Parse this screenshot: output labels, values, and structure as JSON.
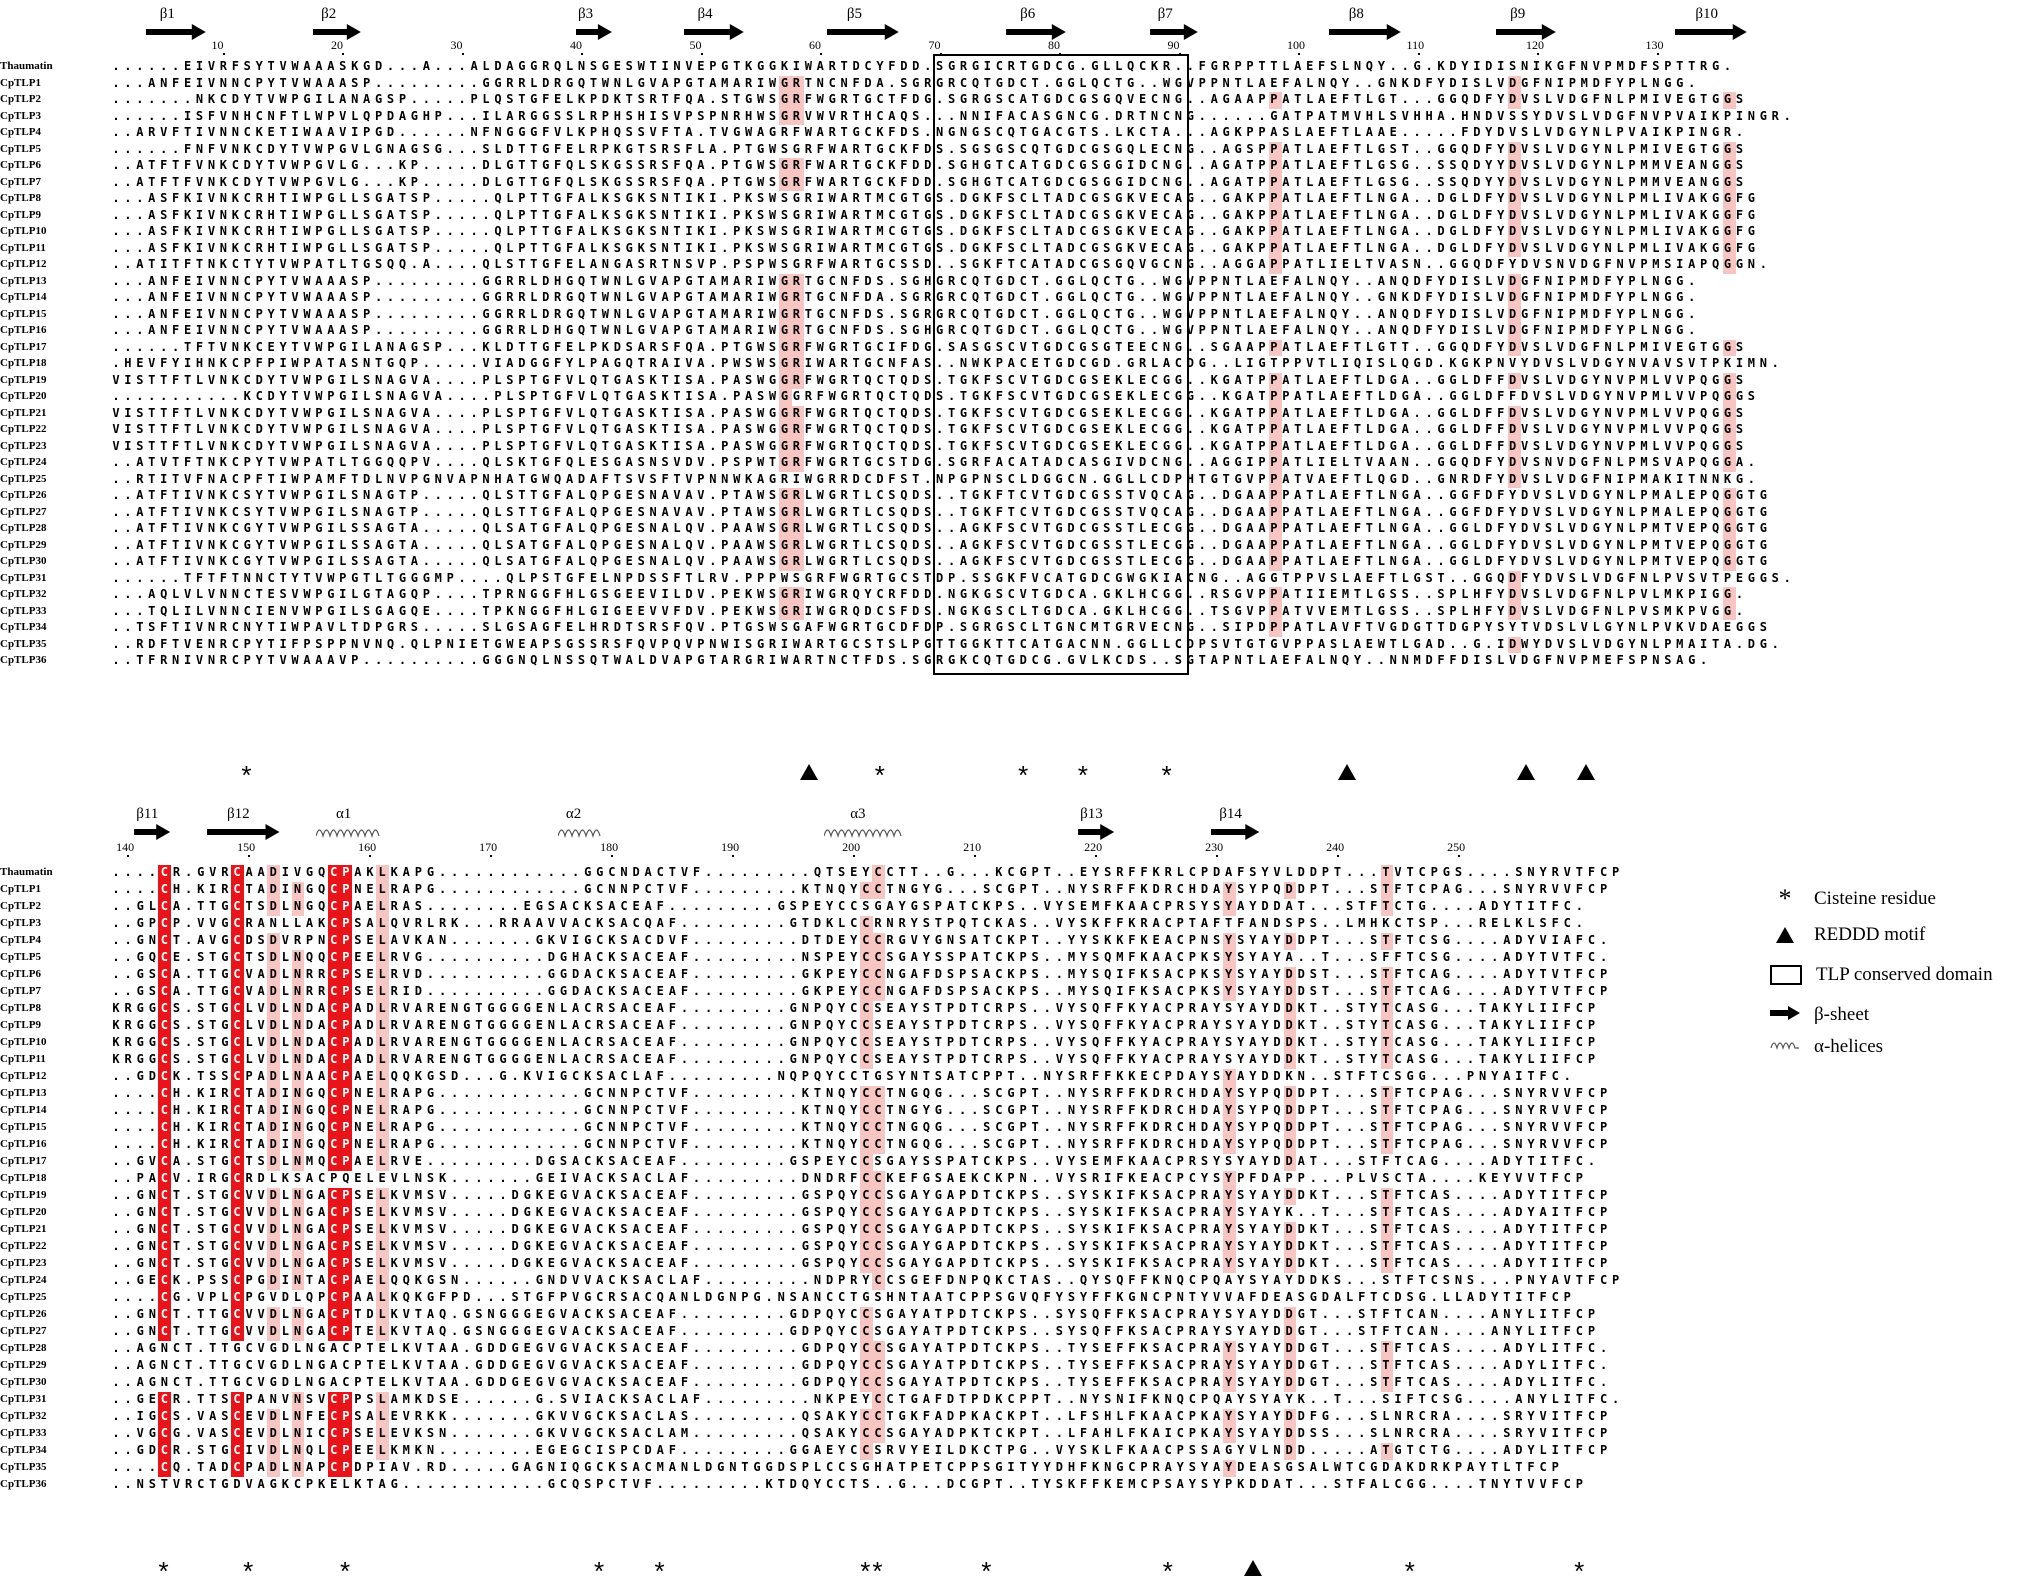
{
  "panel1": {
    "ruler": [
      "10",
      "20",
      "30",
      "40",
      "50",
      "60",
      "70",
      "80",
      "90",
      "100",
      "110",
      "120",
      "130"
    ],
    "ss": [
      {
        "type": "beta",
        "label": "β1"
      },
      {
        "type": "beta",
        "label": "β2"
      },
      {
        "type": "beta",
        "label": "β3"
      },
      {
        "type": "beta",
        "label": "β4"
      },
      {
        "type": "beta",
        "label": "β5"
      },
      {
        "type": "beta",
        "label": "β6"
      },
      {
        "type": "beta",
        "label": "β7"
      },
      {
        "type": "beta",
        "label": "β8"
      },
      {
        "type": "beta",
        "label": "β9"
      },
      {
        "type": "beta",
        "label": "β10"
      }
    ],
    "names": [
      "Thaumatin",
      "CpTLP1",
      "CpTLP2",
      "CpTLP3",
      "CpTLP4",
      "CpTLP5",
      "CpTLP6",
      "CpTLP7",
      "CpTLP8",
      "CpTLP9",
      "CpTLP10",
      "CpTLP11",
      "CpTLP12",
      "CpTLP13",
      "CpTLP14",
      "CpTLP15",
      "CpTLP16",
      "CpTLP17",
      "CpTLP18",
      "CpTLP19",
      "CpTLP20",
      "CpTLP21",
      "CpTLP22",
      "CpTLP23",
      "CpTLP24",
      "CpTLP25",
      "CpTLP26",
      "CpTLP27",
      "CpTLP28",
      "CpTLP29",
      "CpTLP30",
      "CpTLP31",
      "CpTLP32",
      "CpTLP33",
      "CpTLP34",
      "CpTLP35",
      "CpTLP36"
    ],
    "seqs": [
      "......EIVRFSYTVWAAASKGD...A...ALDAGGRQLNSGESWTINVEPGTKGGKIWARTDCYFDD.SGRGICRTGDCG.GLLQCKR..FGRPPTTLAEFSLNQY..G.KDYIDISNIKGFNVPMDFSPTTRG.",
      "...ANFEIVNNCPYTVWAAASP.........GGRRLDRGQTWNLGVAPGTAMARIWGRTNCNFDA.SGRGRCQTGDCT.GGLQCTG..WGVPPNTLAEFALNQY..GNKDFYDISLVDGFNIPMDFYPLNGG.",
      ".......NKCDYTVWPGILANAGSP.....PLQSTGFELKPDKTSRTFQA.STGWSGRFWGRTGCTFDG.SGRGSCATGDCGSGQVECNG..AGAAPPATLAEFTLGT...GGQDFYDVSLVDGFNLPMIVEGTGGS",
      "......ISFVNHCNFTLWPVLQPDAGHP...ILARGGSSLRPHSHISVPSPNRHWSGRVWVRTHCAQS...NNIFACASGNCG.DRTNCNG......GATPATMVHLSVHHA.HNDVSSYDVSLVDGFNVPVAIKPINGR.",
      "..ARVFTIVNNCKETIWAAVIPGD......NFNGGGFVLKPHQSSVFTA.TVGWAGRFWARTGCKFDS.NGNGSCQTGACGTS.LKCTA...AGKPPASLAEFTLAAE.....FDYDVSLVDGYNLPVAIKPINGR.",
      "......FNFVNKCDYTVWPGVLGNAGSG...SLDTTGFELRPKGTSRSFLA.PTGWSGRFWARTGCKFDS.SGSGSCQTGDCGSGQLECNG..AGSPPATLAEFTLGST..GGQDFYDVSLVDGYNLPMIVEGTGGS",
      "..ATFTFVNKCDYTVWPGVLG...KP.....DLGTTGFQLSKGSSRSFQA.PTGWSGRFWARTGCKFDD.SGHGTCATGDCGSGGIDCNG..AGATPPATLAEFTLGSG..SSQDYYDVSLVDGYNLPMMVEANGGS",
      "..ATFTFVNKCDYTVWPGVLG...KP.....DLGTTGFQLSKGSSRSFQA.PTGWSGRFWARTGCKFDD.SGHGTCATGDCGSGGIDCNG..AGATPPATLAEFTLGSG..SSQDYYDVSLVDGYNLPMMVEANGGS",
      "...ASFKIVNKCRHTIWPGLLSGATSP.....QLPTTGFALKSGKSNTIKI.PKSWSGRIWARTMCGTGS.DGKFSCLTADCGSGKVECAG..GAKPPATLAEFTLNGA..DGLDFYDVSLVDGYNLPMLIVAKGGFG",
      "...ASFKIVNKCRHTIWPGLLSGATSP.....QLPTTGFALKSGKSNTIKI.PKSWSGRIWARTMCGTGS.DGKFSCLTADCGSGKVECAG..GAKPPATLAEFTLNGA..DGLDFYDVSLVDGYNLPMLIVAKGGFG",
      "...ASFKIVNKCRHTIWPGLLSGATSP.....QLPTTGFALKSGKSNTIKI.PKSWSGRIWARTMCGTGS.DGKFSCLTADCGSGKVECAG..GAKPPATLAEFTLNGA..DGLDFYDVSLVDGYNLPMLIVAKGGFG",
      "...ASFKIVNKCRHTIWPGLLSGATSP.....QLPTTGFALKSGKSNTIKI.PKSWSGRIWARTMCGTGS.DGKFSCLTADCGSGKVECAG..GAKPPATLAEFTLNGA..DGLDFYDVSLVDGYNLPMLIVAKGGFG",
      "..ATITFTNKCTYTVWPATLTGSQQ.A....QLSTTGFELANGASRTNSVP.PSPWSGRFWARTGCSSD..SGKFTCATADCGSGQVGCNG..AGGAPPATLIELTVASN..GGQDFYDVSNVDGFNVPMSIAPQGGN.",
      "...ANFEIVNNCPYTVWAAASP.........GGRRLDHGQTWNLGVAPGTAMARIWGRTGCNFDS.SGHGRCQTGDCT.GGLQCTG..WGVPPNTLAEFALNQY..ANQDFYDISLVDGFNIPMDFYPLNGG.",
      "...ANFEIVNNCPYTVWAAASP.........GGRRLDRGQTWNLGVAPGTAMARIWGRTGCNFDA.SGRGRCQTGDCT.GGLQCTG..WGVPPNTLAEFALNQY..GNKDFYDISLVDGFNIPMDFYPLNGG.",
      "...ANFEIVNNCPYTVWAAASP.........GGRRLDRGQTWNLGVAPGTAMARIWGRTGCNFDS.SGRGRCQTGDCT.GGLQCTG..WGVPPNTLAEFALNQY..ANQDFYDISLVDGFNIPMDFYPLNGG.",
      "...ANFEIVNNCPYTVWAAASP.........GGRRLDHGQTWNLGVAPGTAMARIWGRTGCNFDS.SGHGRCQTGDCT.GGLQCTG..WGVPPNTLAEFALNQY..ANQDFYDISLVDGFNIPMDFYPLNGG.",
      "......TFTVNKCEYTVWPGILANAGSP...KLDTTGFELPKDSARSFQA.PTGWSGRFWGRTGCIFDG.SASGSCVTGDCGSGTEECNG..SGAAPPATLAEFTLGTT..GGQDFYDVSLVDGFNLPMIVEGTGGS",
      ".HEVFYIHNKCPFPIWPATASNTGQP.....VIADGGFYLPAGQTRAIVA.PWSWSGRIWARTGCNFAS..NWKPACETGDCGD.GRLACDG..LIGTPPVTLIQISLQGD.KGKPNVYDVSLVDGYNVAVSVTPKIMN.",
      "VISTTFTLVNKCDYTVWPGILSNAGVA....PLSPTGFVLQTGASKTISA.PASWGGRFWGRTQCTQDS.TGKFSCVTGDCGSEKLECGG..KGATPPATLAEFTLDGA..GGLDFFDVSLVDGYNVPMLVVPQGGS",
      "...........KCDYTVWPGILSNAGVA....PLSPTGFVLQTGASKTISA.PASWGGRFWGRTQCTQDS.TGKFSCVTGDCGSEKLECGG..KGATPPATLAEFTLDGA..GGLDFFDVSLVDGYNVPMLVVPQGGS",
      "VISTTFTLVNKCDYTVWPGILSNAGVA....PLSPTGFVLQTGASKTISA.PASWGGRFWGRTQCTQDS.TGKFSCVTGDCGSEKLECGG..KGATPPATLAEFTLDGA..GGLDFFDVSLVDGYNVPMLVVPQGGS",
      "VISTTFTLVNKCDYTVWPGILSNAGVA....PLSPTGFVLQTGASKTISA.PASWGGRFWGRTQCTQDS.TGKFSCVTGDCGSEKLECGG..KGATPPATLAEFTLDGA..GGLDFFDVSLVDGYNVPMLVVPQGGS",
      "VISTTFTLVNKCDYTVWPGILSNAGVA....PLSPTGFVLQTGASKTISA.PASWGGRFWGRTQCTQDS.TGKFSCVTGDCGSEKLECGG..KGATPPATLAEFTLDGA..GGLDFFDVSLVDGYNVPMLVVPQGGS",
      "..ATVTFTNKCPYTVWPATLTGGQQPV....QLSKTGFQLESGASNSVDV.PSPWTGRFWGRTGCSTDG.SGRFACATADCASGIVDCNG..AGGIPPATLIELTVAAN..GGQDFYDVSNVDGFNLPMSVAPQGGA.",
      "..RTITVFNACPFTIWPAMFTDLNVPGNVAPNHATGWQADAFTSVSFTVPNNWKAGRIWGRRDCDFST.NPGPNSCLDGGCN.GGLLCDPHTGTGVPPATVAEFTLQGD..GNRDFYDVSLVDGFNIPMAKITNNKG.",
      "..ATFTIVNKCSYTVWPGILSNAGTP.....QLSTTGFALQPGESNAVAV.PTAWSGRLWGRTLCSQDS..TGKFTCVTGDCGSSTVQCAG..DGAAPPATLAEFTLNGA..GGFDFYDVSLVDGYNLPMALEPQGGTG",
      "..ATFTIVNKCSYTVWPGILSNAGTP.....QLSTTGFALQPGESNAVAV.PTAWSGRLWGRTLCSQDS..TGKFTCVTGDCGSSTVQCAG..DGAAPPATLAEFTLNGA..GGFDFYDVSLVDGYNLPMALEPQGGTG",
      "..ATFTIVNKCGYTVWPGILSSAGTA.....QLSATGFALQPGESNALQV.PAAWSGRLWGRTLCSQDS..AGKFSCVTGDCGSSTLECGG..DGAAPPATLAEFTLNGA..GGLDFYDVSLVDGYNLPMTVEPQGGTG",
      "..ATFTIVNKCGYTVWPGILSSAGTA.....QLSATGFALQPGESNALQV.PAAWSGRLWGRTLCSQDS..AGKFSCVTGDCGSSTLECGG..DGAAPPATLAEFTLNGA..GGLDFYDVSLVDGYNLPMTVEPQGGTG",
      "..ATFTIVNKCGYTVWPGILSSAGTA.....QLSATGFALQPGESNALQV.PAAWSGRLWGRTLCSQDS..AGKFSCVTGDCGSSTLECGG..DGAAPPATLAEFTLNGA..GGLDFYDVSLVDGYNLPMTVEPQGGTG",
      "......TFTFTNNCTYTVWPGTLTGGGMP....QLPSTGFELNPDSSFTLRV.PPPWSGRFWGRTGCSTDP.SSGKFVCATGDCGWGKIACNG..AGGTPPVSLAEFTLGST..GGQDFYDVSLVDGFNLPVSVTPEGGS.",
      "...AQLVLVNNCTESVWPGILGTAGQP....TPRNGGFHLGSGEEVILDV.PEKWSGRIWGRQYCRFDD.NGKGSCVTGDCA.GKLHCGG..RSGVPPATIIEMTLGSS..SPLHFYDVSLVDGFNLPVLMKPIGG.",
      "...TQLILVNNCIENVWPGILSGAGQE....TPKNGGFHLGIGEEVVFDV.PEKWSGRIWGRQDCSFDS.NGKGSCLTGDCA.GKLHCGG..TSGVPPATVVEMTLGSS..SPLHFYDVSLVDGFNLPVSMKPVGG.",
      "..TSFTIVNRCNYTIWPAVLTDPGRS.....SLGSAGFELHRDTSRSFQV.PTGSWSGAFWGRTGCDFDP.SGRGSCLTGNCMTGRVECNG..SIPDPPATLAVFTVGDGTTDGPYSYTVDSLVLGYNLPVKVDAEGGS",
      "..RDFTVENRCPYTIFPSPPNVNQ.QLPNIETGWEAPSGSSRSFQVPQVPNWISGRIWARTGCSTSLPGTTGGKTTCATGACNN.GGLLCDPSVTGTGVPPASLAEWTLGAD..G.IDWYDVSLVDGYNLPMAITA.DG.",
      "..TFRNIVNRCPYTVWAAAVP..........GGGNQLNSSQTWALDVAPGTARGRIWARTNCTFDS.SGRGKCQTGDCG.GVLKCDS..SGTAPNTLAEFALNQY..NNMDFFDISLVDGFNVPMEFSPNSAG."
    ],
    "marks": [
      {
        "k": "star",
        "col": 11
      },
      {
        "k": "tri",
        "col": 58
      },
      {
        "k": "star",
        "col": 64
      },
      {
        "k": "star",
        "col": 76
      },
      {
        "k": "star",
        "col": 81
      },
      {
        "k": "star",
        "col": 88
      },
      {
        "k": "tri",
        "col": 103
      },
      {
        "k": "tri",
        "col": 118
      },
      {
        "k": "tri",
        "col": 123
      }
    ]
  },
  "panel2": {
    "ruler": [
      "140",
      "150",
      "160",
      "170",
      "180",
      "190",
      "200",
      "210",
      "220",
      "230",
      "240",
      "250"
    ],
    "ss": [
      {
        "type": "beta",
        "label": "β11"
      },
      {
        "type": "beta",
        "label": "β12"
      },
      {
        "type": "helix",
        "label": "α1"
      },
      {
        "type": "helix",
        "label": "α2"
      },
      {
        "type": "helix",
        "label": "α3"
      },
      {
        "type": "beta",
        "label": "β13"
      },
      {
        "type": "beta",
        "label": "β14"
      }
    ],
    "names": [
      "Thaumatin",
      "CpTLP1",
      "CpTLP2",
      "CpTLP3",
      "CpTLP4",
      "CpTLP5",
      "CpTLP6",
      "CpTLP7",
      "CpTLP8",
      "CpTLP9",
      "CpTLP10",
      "CpTLP11",
      "CpTLP12",
      "CpTLP13",
      "CpTLP14",
      "CpTLP15",
      "CpTLP16",
      "CpTLP17",
      "CpTLP18",
      "CpTLP19",
      "CpTLP20",
      "CpTLP21",
      "CpTLP22",
      "CpTLP23",
      "CpTLP24",
      "CpTLP25",
      "CpTLP26",
      "CpTLP27",
      "CpTLP28",
      "CpTLP29",
      "CpTLP30",
      "CpTLP31",
      "CpTLP32",
      "CpTLP33",
      "CpTLP34",
      "CpTLP35",
      "CpTLP36"
    ],
    "seqs": [
      "....CR.GVRCAADIVGQCPAKLKAPG............GGCNDACTVF.........QTSEYCCTT..G...KCGPT..EYSRFFKRLCPDAFSYVLDDPT...TVTCPGS....SNYRVTFCP",
      "....CH.KIRCTADINGQCPNELRAPG............GCNNPCTVF.........KTNQYCCTNGYG...SCGPT..NYSRFFKDRCHDAYSYPQDDPT...STFTCPAG...SNYRVVFCP",
      "..GLCA.TTGCTSDLNGQCPAELRAS........EGSACKSACEAF.........GSPEYCCSGAYGSPATCKPS..VYSEMFKAACPRSYSYAYDDAT...STFTCTG....ADYTITFC.",
      "..GPCP.VVGCRANLLAKCPSALQVRLRK...RRAAVVACKSACQAF.........GTDKLCCRNRYSTPQTCKAS..VYSKFFKRACPTAFTFANDSPS..LMHKCTSP...RELKLSFC.",
      "..GNCT.AVGCDSDVRPNCPSELAVKAN.......GKVIGCKSACDVF.........DTDEYCCRGVYGNSATCKPT..YYSKKFKEACPNSYSYAYDDPT...STFTCSG....ADYVIAFC.",
      "..GQCE.STGCTSDLNQQCPEELRVG..........DGHACKSACEAF.........NSPEYCCSGAYSSPATCKPS..MYSQMFKAACPKSYSYAYA..T...SFFTCSG....ADYTVTFC.",
      "..GSCA.TTGCVADLNRRCPSELRVD..........GGDACKSACEAF.........GKPEYCCNGAFDSPSACKPS..MYSQIFKSACPKSYSYAYDDST...STFTCAG....ADYTVTFCP",
      "..GSCA.TTGCVADLNRRCPSELRID..........GGDACKSACEAF.........GKPEYCCNGAFDSPSACKPS..MYSQIFKSACPKSYSYAYDDST...STFTCAG....ADYTVTFCP",
      "KRGGCS.STGCLVDLNDACPADLRVARENGTGGGGENLACRSACEAF.........GNPQYCCSEAYSTPDTCRPS..VYSQFFKYACPRAYSYAYDDKT..STYTCASG...TAKYLIIFCP",
      "KRGGCS.STGCLVDLNDACPADLRVARENGTGGGGENLACRSACEAF.........GNPQYCCSEAYSTPDTCRPS..VYSQFFKYACPRAYSYAYDDKT..STYTCASG...TAKYLIIFCP",
      "KRGGCS.STGCLVDLNDACPADLRVARENGTGGGGENLACRSACEAF.........GNPQYCCSEAYSTPDTCRPS..VYSQFFKYACPRAYSYAYDDKT..STYTCASG...TAKYLIIFCP",
      "KRGGCS.STGCLVDLNDACPADLRVARENGTGGGGENLACRSACEAF.........GNPQYCCSEAYSTPDTCRPS..VYSQFFKYACPRAYSYAYDDKT..STYTCASG...TAKYLIIFCP",
      "..GDCK.TSSCPADLNAACPAELQQKGSD...G.KVIGCKSACLAF.........NQPQYCCTGSYNTSATCPPT..NYSRFFKKECPDAYSYAYDDKN..STFTCSGG...PNYAITFC.",
      "....CH.KIRCTADINGQCPNELRAPG............GCNNPCTVF.........KTNQYCCTNGQG...SCGPT..NYSRFFKDRCHDAYSYPQDDPT...STFTCPAG...SNYRVVFCP",
      "....CH.KIRCTADINGQCPNELRAPG............GCNNPCTVF.........KTNQYCCTNGYG...SCGPT..NYSRFFKDRCHDAYSYPQDDPT...STFTCPAG...SNYRVVFCP",
      "....CH.KIRCTADINGQCPNELRAPG............GCNNPCTVF.........KTNQYCCTNGQG...SCGPT..NYSRFFKDRCHDAYSYPQDDPT...STFTCPAG...SNYRVVFCP",
      "....CH.KIRCTADINGQCPNELRAPG............GCNNPCTVF.........KTNQYCCTNGQG...SCGPT..NYSRFFKDRCHDAYSYPQDDPT...STFTCPAG...SNYRVVFCP",
      "..GVCA.STGCTSDLNMQCPAELRVE.........DGSACKSACEAF.........GSPEYCCSGAYSSPATCKPS..VYSEMFKAACPRSYSYAYDDAT...STFTCAG....ADYTITFC.",
      "..PACV.IRGCRDLKSACPQELEVLNSK.......GEIVACKSACLAF.........DNDRFCCKEFGSAEKCKPN..VYSRIFKEACPCYSYPFDAPP...PLVSCTA....KEYVVTFCP",
      "..GNCT.STGCVVDLNGACPSELKVMSV.....DGKEGVACKSACEAF.........GSPQYCCSGAYGAPDTCKPS..SYSKIFKSACPRAYSYAYDDKT...STFTCAS....ADYTITFCP",
      "..GNCT.STGCVVDLNGACPSELKVMSV.....DGKEGVACKSACEAF.........GSPQYCCSGAYGAPDTCKPS..SYSKIFKSACPRAYSYAYK..T...STFTCAS....ADYAITFCP",
      "..GNCT.STGCVVDLNGACPSELKVMSV.....DGKEGVACKSACEAF.........GSPQYCCSGAYGAPDTCKPS..SYSKIFKSACPRAYSYAYDDKT...STFTCAS....ADYTITFCP",
      "..GNCT.STGCVVDLNGACPSELKVMSV.....DGKEGVACKSACEAF.........GSPQYCCSGAYGAPDTCKPS..SYSKIFKSACPRAYSYAYDDKT...STFTCAS....ADYTITFCP",
      "..GNCT.STGCVVDLNGACPSELKVMSV.....DGKEGVACKSACEAF.........GSPQYCCSGAYGAPDTCKPS..SYSKIFKSACPRAYSYAYDDKT...STFTCAS....ADYTITFCP",
      "..GECK.PSSCPGDINTACPAELQQKGSN......GNDVVACKSACLAF.........NDPRYCCSGEFDNPQKCTAS..QYSQFFKNQCPQAYSYAYDDKS...STFTCSNS...PNYAVTFCP",
      "....CG.VPLCPGVDLQPCPAALKQKGFPD...STGFPVGCRSACQANLDGNPG.NSANCCTGSHNTAATCPPSGVQFYSYFFKGNCPNTYVVAFDEASGDALFTCDSG.LLADYTITFCP",
      "..GNCT.TTGCVVDLNGACPTDLKVTAQ.GSNGGGEGVACKSACEAF.........GDPQYCCSGAYATPDTCKPS..SYSQFFKSACPRAYSYAYDDGT...STFTCAN....ANYLITFCP",
      "..GNCT.TTGCVVDLNGACPTELKVTAQ.GSNGGGEGVACKSACEAF.........GDPQYCCSGAYATPDTCKPS..SYSQFFKSACPRAYSYAYDDGT...STFTCAN....ANYLITFCP",
      "..AGNCT.TTGCVGDLNGACPTELKVTAA.GDDGEGVGVACKSACEAF.........GDPQYCCSGAYATPDTCKPS..TYSEFFKSACPRAYSYAYDDGT...STFTCAS....ADYLITFC.",
      "..AGNCT.TTGCVGDLNGACPTELKVTAA.GDDGEGVGVACKSACEAF.........GDPQYCCSGAYATPDTCKPS..TYSEFFKSACPRAYSYAYDDGT...STFTCAS....ADYLITFC.",
      "..AGNCT.TTGCVGDLNGACPTELKVTAA.GDDGEGVGVACKSACEAF.........GDPQYCCSGAYATPDTCKPS..TYSEFFKSACPRAYSYAYDDGT...STFTCAS....ADYLITFC.",
      "..GECR.TTSCPANVNSVCPPSLAMKDSE......G.SVIACKSACLAF.........NKPEYCCTGAFDTPDKCPPT..NYSNIFKNQCPQAYSYAYK..T...SIFTCSG....ANYLITFC.",
      "..IGCS.VASCEVDLNFECPSALEVRKK.......GKVVGCKSACLAS.........QSAKYCCTGKFADPKACKPT..LFSHLFKAACPKAYSYAYDDFG...SLNRCRA....SRYVITFCP",
      "..VGCG.VASCEVDLNICCPSELEVKSN.......GKVVGCKSACLAM.........QSAKYCCSGAYADPKTCKPT..LFAHLFKAICPKAYSYAYDDSS...SLNRCRA....SRYVITFCP",
      "..GDCR.STGCIVDLNQLCPEELKMKN........EGEGCISPCDAF.........GGAEYCCSRVYEILDKCTPG..VYSKLFKAACPSSAGYVLNDD.....ATGTCTG....ADYLITFCP",
      "....CQ.TADCPADLNAPCPDPIAV.RD.....GAGNIQGCKSACMANLDGNTGGDSPLCCSGHATPETCPPSGITYYDHFKNGCPRAYSYAYDEASGSALWTCGDAKDRKPAYTLTFCP",
      "..NSTVRCTGDVAGKCPKELKTAG............GCQSPCTVF.........KTDQYCCTS..G...DCGPT..TYSKFFKEMCPSAYSYPKDDAT...STFALCGG....TNYTVVFCP"
    ],
    "marks": [
      {
        "k": "star",
        "col": 4
      },
      {
        "k": "star",
        "col": 11
      },
      {
        "k": "star",
        "col": 19
      },
      {
        "k": "star",
        "col": 40
      },
      {
        "k": "star",
        "col": 45
      },
      {
        "k": "star",
        "col": 62
      },
      {
        "k": "star",
        "col": 63
      },
      {
        "k": "star",
        "col": 72
      },
      {
        "k": "star",
        "col": 87
      },
      {
        "k": "tri",
        "col": 94
      },
      {
        "k": "star",
        "col": 107
      },
      {
        "k": "star",
        "col": 121
      }
    ]
  },
  "legend": {
    "cysteine": "Cisteine residue",
    "reddd": "REDDD motif",
    "tlp": "TLP conserved domain",
    "beta": "β-sheet",
    "alpha": "α-helices"
  }
}
